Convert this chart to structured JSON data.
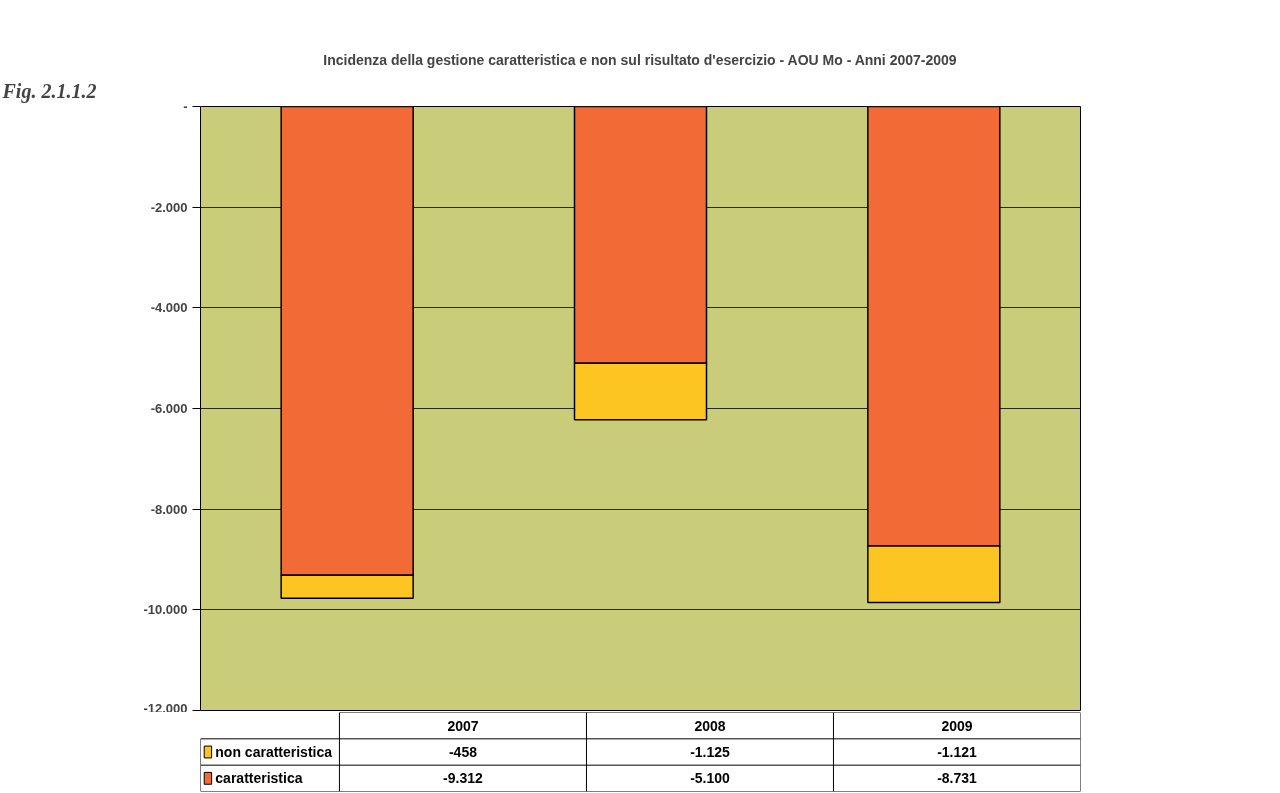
{
  "chart_data": {
    "type": "bar",
    "title": "Incidenza della gestione caratteristica e non sul risultato d'esercizio - AOU Mo - Anni 2007-2009",
    "annotations": [
      "Fig. 2.1.1.2"
    ],
    "categories": [
      "2007",
      "2008",
      "2009"
    ],
    "stacked": true,
    "series": [
      {
        "name": "caratteristica",
        "color": "#f26a35",
        "values": [
          -9312,
          -5100,
          -8731
        ],
        "value_labels": [
          "-9.312",
          "-5.100",
          "-8.731"
        ]
      },
      {
        "name": "non caratteristica",
        "color": "#fdc521",
        "values": [
          -458,
          -1125,
          -1121
        ],
        "value_labels": [
          "-458",
          "-1.125",
          "-1.121"
        ]
      }
    ],
    "ylim": [
      -12000,
      0
    ],
    "yticks": [
      {
        "value": 0,
        "label": "-"
      },
      {
        "value": -2000,
        "label": "-2.000"
      },
      {
        "value": -4000,
        "label": "-4.000"
      },
      {
        "value": -6000,
        "label": "-6.000"
      },
      {
        "value": -8000,
        "label": "-8.000"
      },
      {
        "value": -10000,
        "label": "-10.000"
      },
      {
        "value": -12000,
        "label": "-12.000"
      }
    ],
    "grid": "y",
    "legend": "bottom"
  }
}
